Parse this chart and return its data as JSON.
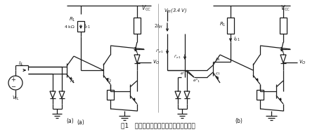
{
  "title": "图1   与非门输入端并联时输入电流的计算",
  "label_a": "(a)",
  "label_b": "(b)",
  "fig_width": 4.51,
  "fig_height": 1.88,
  "dpi": 100,
  "cc": "#1a1a1a",
  "tc": "#1a1a1a"
}
